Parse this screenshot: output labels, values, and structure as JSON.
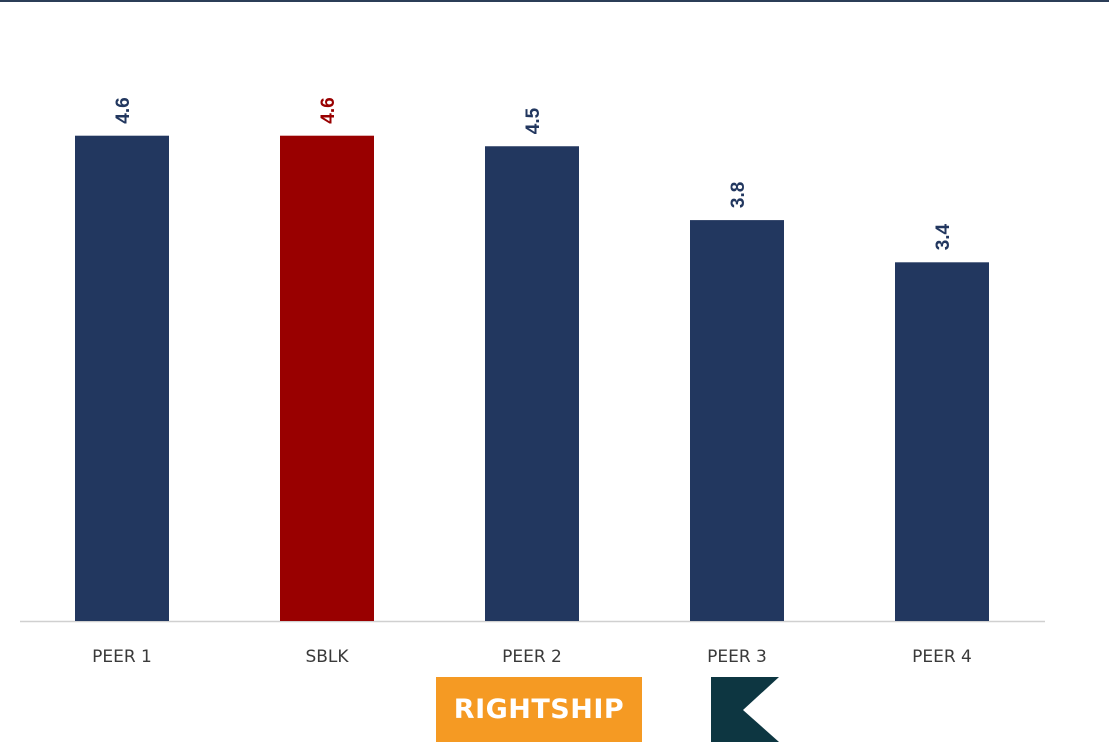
{
  "chart_data": {
    "type": "bar",
    "categories": [
      "PEER 1",
      "SBLK",
      "PEER 2",
      "PEER 3",
      "PEER 4"
    ],
    "values": [
      4.6,
      4.6,
      4.5,
      3.8,
      3.4
    ],
    "value_labels": [
      "4.6",
      "4.6",
      "4.5",
      "3.8",
      "3.4"
    ],
    "highlight_category": "SBLK",
    "ylim": [
      0,
      5
    ],
    "grid": false,
    "legend": "none",
    "colors": {
      "bar": "#22375f",
      "highlight_bar": "#990000",
      "label": "#22375f",
      "highlight_label": "#990000",
      "axis": "#d0d0d0"
    }
  },
  "logos": {
    "rightship": {
      "text": "RIGHTSHIP",
      "background": "#f59a23",
      "text_color": "#ffffff"
    },
    "k_logo": {
      "background": "#0d3641",
      "chevron_color": "#ffffff"
    }
  },
  "colors": {
    "top_rule": "#2b3d57"
  }
}
